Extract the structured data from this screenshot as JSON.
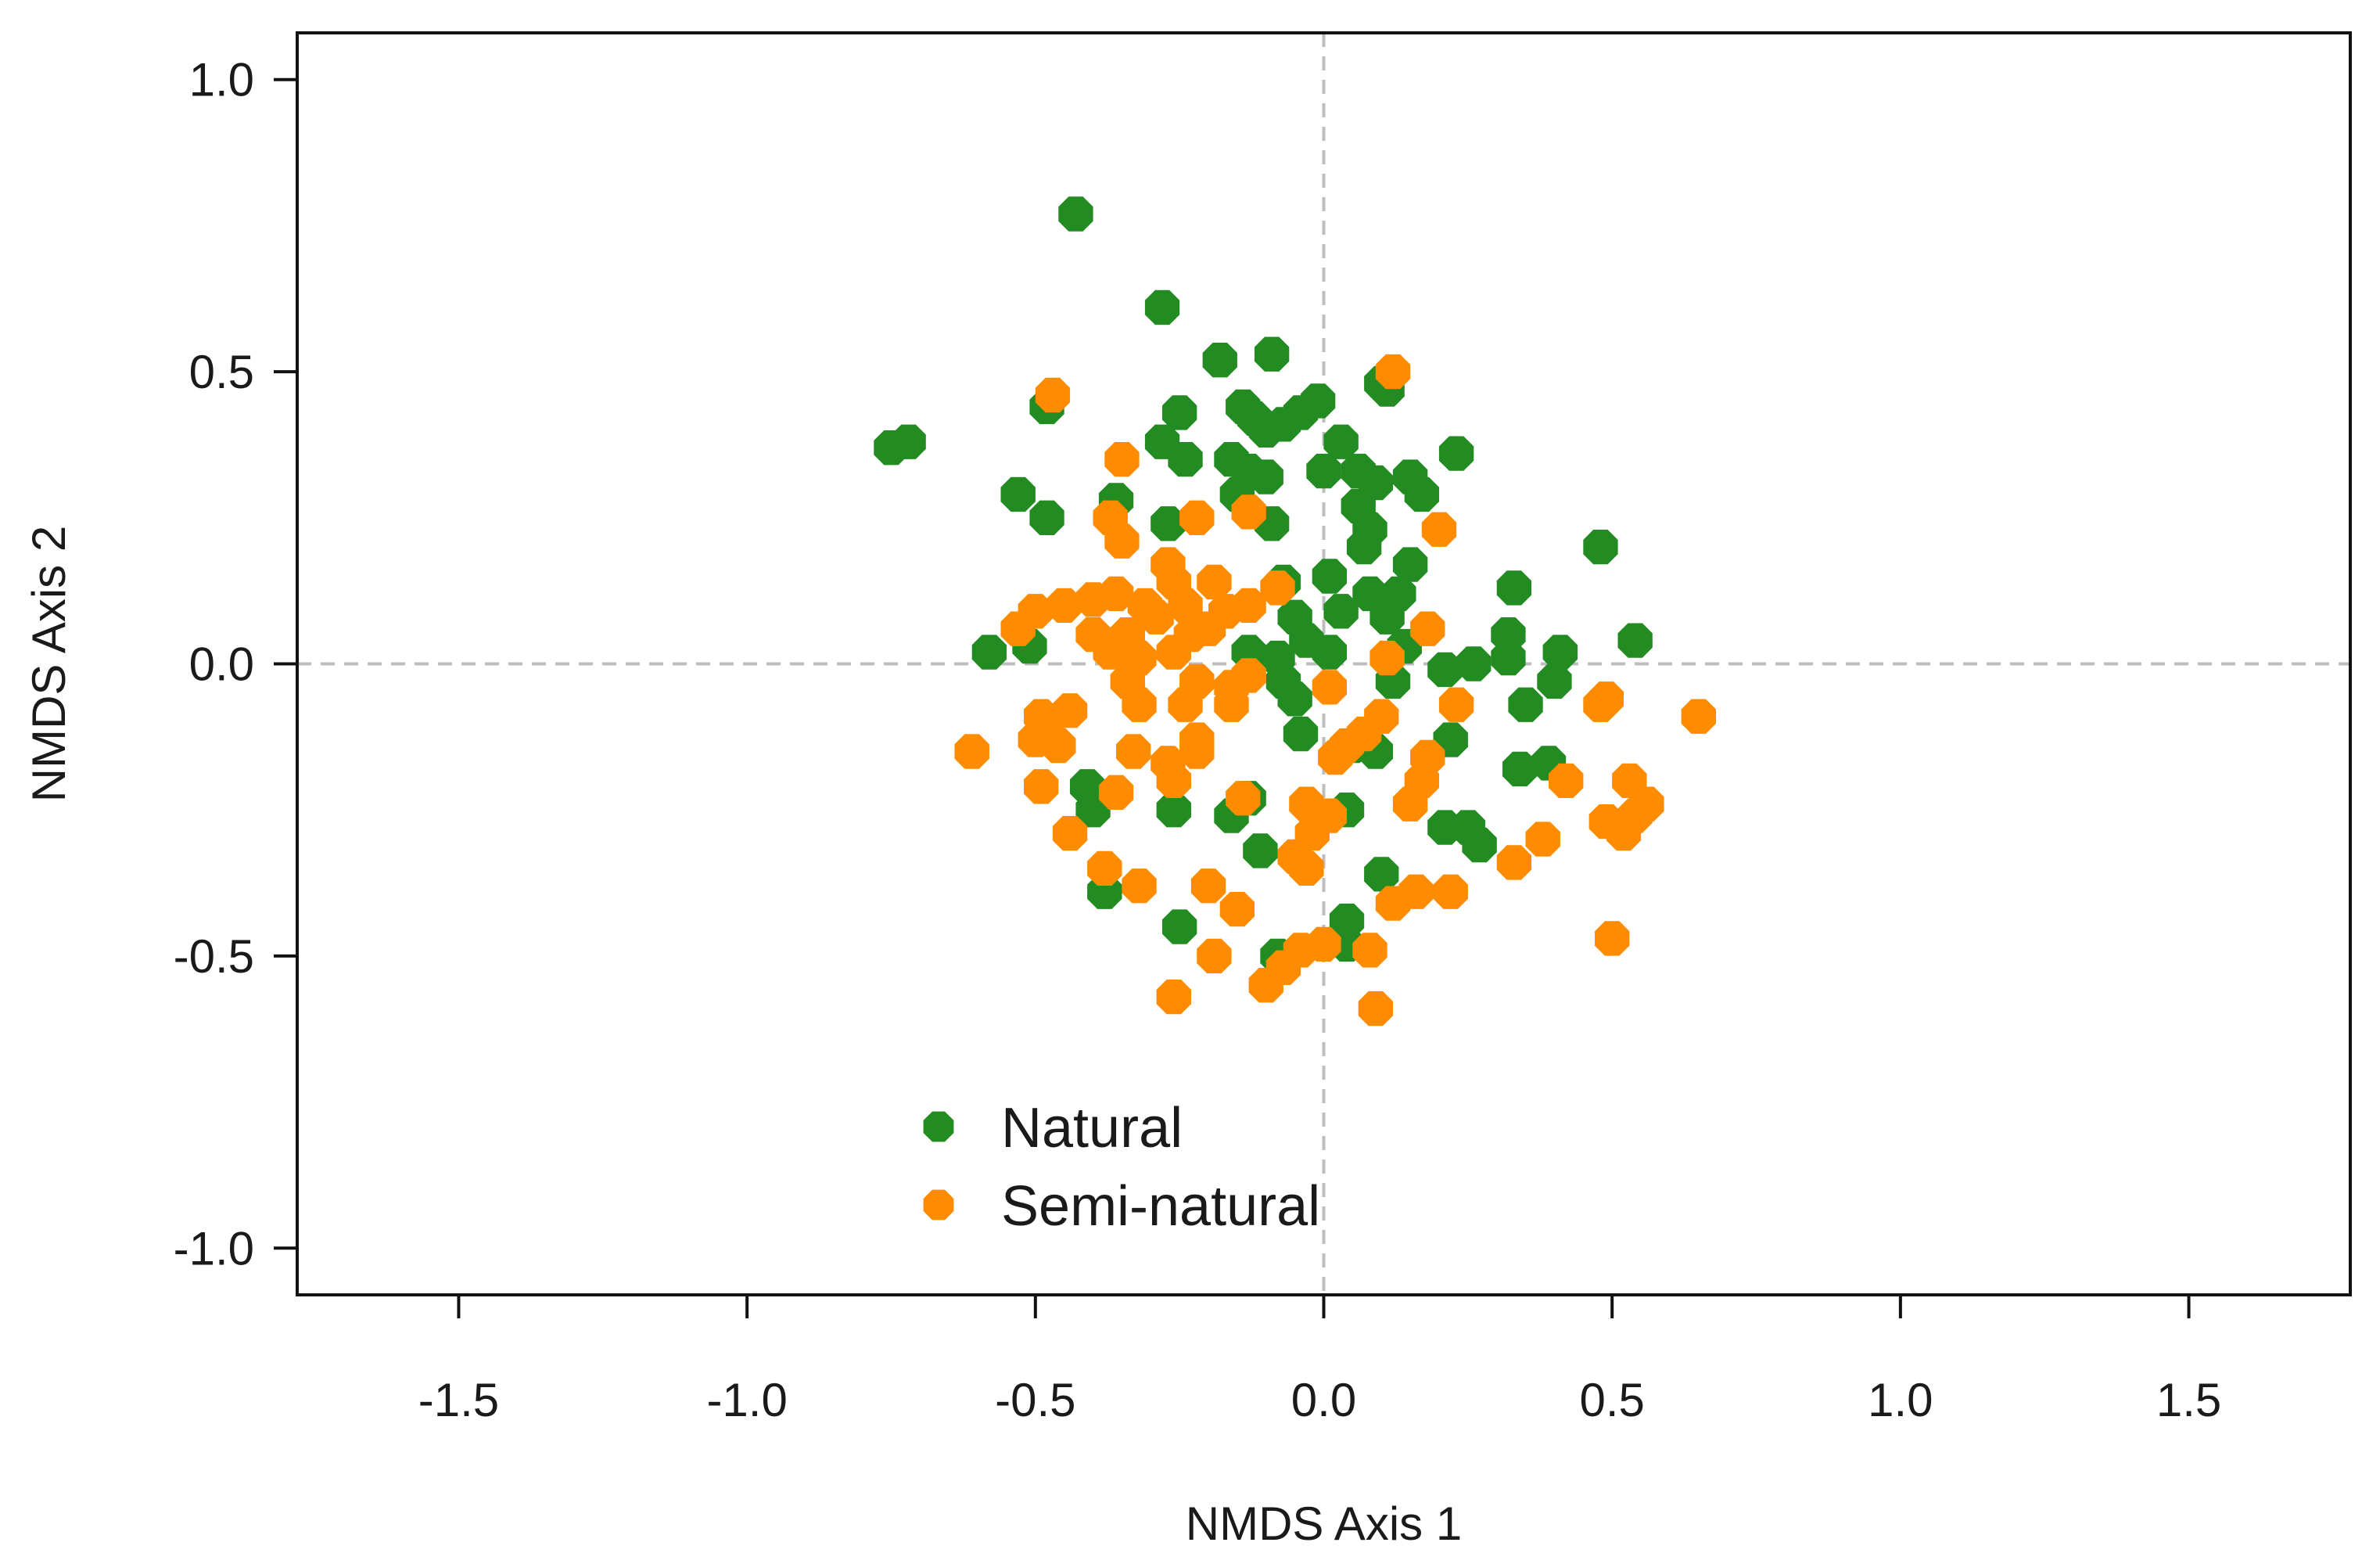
{
  "chart_data": {
    "type": "scatter",
    "title": "",
    "xlabel": "NMDS Axis 1",
    "ylabel": "NMDS Axis 2",
    "xlim": [
      -1.78,
      1.78
    ],
    "ylim": [
      -1.08,
      1.08
    ],
    "xticks": [
      -1.5,
      -1.0,
      -0.5,
      0.0,
      0.5,
      1.0,
      1.5
    ],
    "xtick_labels": [
      "-1.5",
      "-1.0",
      "-0.5",
      "0.0",
      "0.5",
      "1.0",
      "1.5"
    ],
    "yticks": [
      -1.0,
      -0.5,
      0.0,
      0.5,
      1.0
    ],
    "ytick_labels": [
      "-1.0",
      "-0.5",
      "0.0",
      "0.5",
      "1.0"
    ],
    "reference_lines": {
      "x": 0,
      "y": 0
    },
    "legend_position": "bottom-center",
    "series": [
      {
        "name": "Natural",
        "color": "#228b22",
        "points": [
          [
            -0.43,
            0.77
          ],
          [
            -0.28,
            0.61
          ],
          [
            -0.75,
            0.37
          ],
          [
            -0.72,
            0.38
          ],
          [
            -0.48,
            0.44
          ],
          [
            -0.18,
            0.52
          ],
          [
            -0.09,
            0.53
          ],
          [
            -0.25,
            0.43
          ],
          [
            -0.14,
            0.44
          ],
          [
            -0.12,
            0.42
          ],
          [
            -0.1,
            0.4
          ],
          [
            -0.07,
            0.41
          ],
          [
            -0.04,
            0.43
          ],
          [
            -0.01,
            0.45
          ],
          [
            0.03,
            0.38
          ],
          [
            0.11,
            0.47
          ],
          [
            0.1,
            0.48
          ],
          [
            0.23,
            0.36
          ],
          [
            -0.28,
            0.38
          ],
          [
            -0.24,
            0.35
          ],
          [
            -0.16,
            0.35
          ],
          [
            -0.13,
            0.33
          ],
          [
            -0.15,
            0.29
          ],
          [
            -0.1,
            0.32
          ],
          [
            0.0,
            0.33
          ],
          [
            0.06,
            0.33
          ],
          [
            0.09,
            0.31
          ],
          [
            0.15,
            0.32
          ],
          [
            0.17,
            0.29
          ],
          [
            -0.53,
            0.29
          ],
          [
            -0.48,
            0.25
          ],
          [
            -0.36,
            0.28
          ],
          [
            -0.27,
            0.24
          ],
          [
            -0.09,
            0.24
          ],
          [
            0.06,
            0.27
          ],
          [
            0.08,
            0.23
          ],
          [
            0.07,
            0.2
          ],
          [
            0.15,
            0.17
          ],
          [
            -0.07,
            0.14
          ],
          [
            0.01,
            0.15
          ],
          [
            0.08,
            0.12
          ],
          [
            0.13,
            0.12
          ],
          [
            -0.05,
            0.08
          ],
          [
            0.03,
            0.09
          ],
          [
            0.11,
            0.08
          ],
          [
            0.33,
            0.13
          ],
          [
            0.32,
            0.05
          ],
          [
            -0.03,
            0.04
          ],
          [
            0.01,
            0.02
          ],
          [
            0.14,
            0.03
          ],
          [
            -0.58,
            0.02
          ],
          [
            -0.51,
            0.03
          ],
          [
            -0.13,
            0.02
          ],
          [
            -0.08,
            0.01
          ],
          [
            0.21,
            -0.01
          ],
          [
            0.26,
            0.0
          ],
          [
            0.32,
            0.01
          ],
          [
            0.41,
            0.02
          ],
          [
            0.48,
            0.2
          ],
          [
            0.54,
            0.04
          ],
          [
            -0.07,
            -0.03
          ],
          [
            -0.05,
            -0.06
          ],
          [
            0.12,
            -0.03
          ],
          [
            0.35,
            -0.07
          ],
          [
            0.4,
            -0.03
          ],
          [
            -0.04,
            -0.12
          ],
          [
            0.05,
            -0.14
          ],
          [
            0.22,
            -0.13
          ],
          [
            0.34,
            -0.18
          ],
          [
            0.39,
            -0.17
          ],
          [
            0.09,
            -0.15
          ],
          [
            -0.41,
            -0.21
          ],
          [
            -0.4,
            -0.25
          ],
          [
            -0.26,
            -0.25
          ],
          [
            -0.16,
            -0.26
          ],
          [
            -0.13,
            -0.23
          ],
          [
            0.04,
            -0.25
          ],
          [
            0.21,
            -0.28
          ],
          [
            0.25,
            -0.28
          ],
          [
            0.27,
            -0.31
          ],
          [
            -0.38,
            -0.39
          ],
          [
            -0.11,
            -0.32
          ],
          [
            0.1,
            -0.36
          ],
          [
            -0.25,
            -0.45
          ],
          [
            0.04,
            -0.44
          ],
          [
            -0.08,
            -0.5
          ],
          [
            0.04,
            -0.48
          ]
        ]
      },
      {
        "name": "Semi-natural",
        "color": "#ff8c00",
        "points": [
          [
            -0.47,
            0.46
          ],
          [
            0.12,
            0.5
          ],
          [
            -0.35,
            0.35
          ],
          [
            -0.37,
            0.25
          ],
          [
            -0.22,
            0.25
          ],
          [
            -0.13,
            0.26
          ],
          [
            0.2,
            0.23
          ],
          [
            -0.35,
            0.21
          ],
          [
            -0.27,
            0.17
          ],
          [
            -0.26,
            0.14
          ],
          [
            -0.19,
            0.14
          ],
          [
            -0.08,
            0.13
          ],
          [
            -0.45,
            0.1
          ],
          [
            -0.5,
            0.09
          ],
          [
            -0.4,
            0.11
          ],
          [
            -0.36,
            0.12
          ],
          [
            -0.31,
            0.1
          ],
          [
            -0.24,
            0.1
          ],
          [
            -0.17,
            0.09
          ],
          [
            -0.13,
            0.1
          ],
          [
            -0.53,
            0.06
          ],
          [
            -0.4,
            0.05
          ],
          [
            -0.34,
            0.05
          ],
          [
            -0.29,
            0.08
          ],
          [
            -0.23,
            0.05
          ],
          [
            -0.2,
            0.06
          ],
          [
            -0.37,
            0.02
          ],
          [
            -0.32,
            0.01
          ],
          [
            -0.26,
            0.02
          ],
          [
            -0.22,
            -0.03
          ],
          [
            -0.16,
            -0.04
          ],
          [
            -0.13,
            -0.02
          ],
          [
            -0.34,
            -0.03
          ],
          [
            -0.32,
            -0.07
          ],
          [
            -0.24,
            -0.07
          ],
          [
            -0.16,
            -0.07
          ],
          [
            -0.49,
            -0.09
          ],
          [
            -0.44,
            -0.08
          ],
          [
            -0.48,
            -0.11
          ],
          [
            -0.46,
            -0.14
          ],
          [
            -0.5,
            -0.13
          ],
          [
            0.11,
            0.01
          ],
          [
            0.18,
            0.06
          ],
          [
            0.01,
            -0.04
          ],
          [
            0.1,
            -0.09
          ],
          [
            0.23,
            -0.07
          ],
          [
            0.07,
            -0.12
          ],
          [
            0.04,
            -0.14
          ],
          [
            0.02,
            -0.16
          ],
          [
            0.18,
            -0.16
          ],
          [
            0.17,
            -0.2
          ],
          [
            0.15,
            -0.24
          ],
          [
            -0.61,
            -0.15
          ],
          [
            -0.33,
            -0.15
          ],
          [
            -0.27,
            -0.17
          ],
          [
            -0.22,
            -0.13
          ],
          [
            -0.22,
            -0.15
          ],
          [
            -0.26,
            -0.2
          ],
          [
            -0.49,
            -0.21
          ],
          [
            -0.36,
            -0.22
          ],
          [
            -0.14,
            -0.23
          ],
          [
            -0.03,
            -0.24
          ],
          [
            0.01,
            -0.26
          ],
          [
            -0.02,
            -0.29
          ],
          [
            -0.44,
            -0.29
          ],
          [
            -0.05,
            -0.33
          ],
          [
            -0.03,
            -0.35
          ],
          [
            0.33,
            -0.34
          ],
          [
            0.38,
            -0.3
          ],
          [
            0.42,
            -0.2
          ],
          [
            0.48,
            -0.07
          ],
          [
            0.49,
            -0.06
          ],
          [
            0.53,
            -0.2
          ],
          [
            0.54,
            -0.26
          ],
          [
            0.52,
            -0.29
          ],
          [
            0.49,
            -0.27
          ],
          [
            0.56,
            -0.24
          ],
          [
            0.65,
            -0.09
          ],
          [
            0.5,
            -0.47
          ],
          [
            -0.38,
            -0.35
          ],
          [
            -0.32,
            -0.38
          ],
          [
            -0.2,
            -0.38
          ],
          [
            -0.15,
            -0.42
          ],
          [
            0.12,
            -0.41
          ],
          [
            0.16,
            -0.39
          ],
          [
            0.22,
            -0.39
          ],
          [
            -0.19,
            -0.5
          ],
          [
            -0.1,
            -0.55
          ],
          [
            -0.07,
            -0.52
          ],
          [
            -0.04,
            -0.49
          ],
          [
            0.0,
            -0.48
          ],
          [
            0.08,
            -0.49
          ],
          [
            -0.26,
            -0.57
          ],
          [
            0.09,
            -0.59
          ]
        ]
      }
    ]
  }
}
